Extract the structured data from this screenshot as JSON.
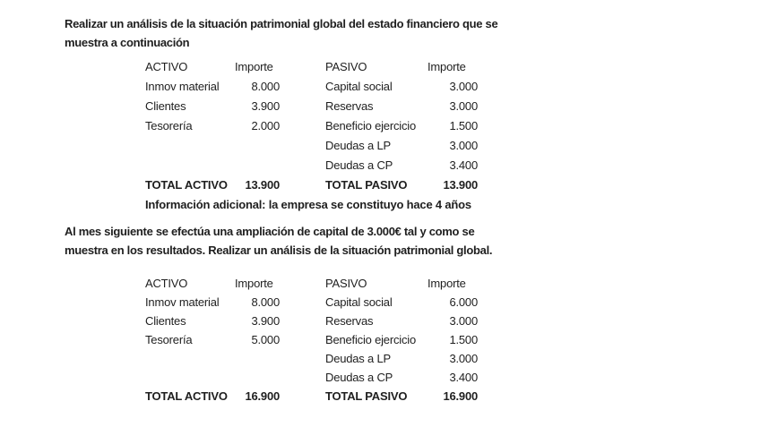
{
  "document": {
    "background": "#ffffff",
    "text_color": "#1f1f1f"
  },
  "exercise1": {
    "prompt_lines": [
      "Realizar un análisis de la situación patrimonial global del estado financiero que se",
      "muestra a continuación"
    ],
    "table": {
      "headers": [
        "ACTIVO",
        "Importe",
        "PASIVO",
        "Importe"
      ],
      "rows": [
        [
          "Inmov material",
          "8.000",
          "Capital social",
          "3.000"
        ],
        [
          "Clientes",
          "3.900",
          "Reservas",
          "3.000"
        ],
        [
          "Tesorería",
          "2.000",
          "Beneficio ejercicio",
          "1.500"
        ],
        [
          "",
          "",
          "Deudas a LP",
          "3.000"
        ],
        [
          "",
          "",
          "Deudas a CP",
          "3.400"
        ]
      ],
      "totals": [
        "TOTAL ACTIVO",
        "13.900",
        "TOTAL PASIVO",
        "13.900"
      ],
      "additional_info": "Información adicional: la empresa se constituyo hace 4 años"
    }
  },
  "exercise2": {
    "prompt_lines": [
      "Al mes siguiente se efectúa una ampliación de capital de 3.000€ tal y como se",
      "muestra en los resultados. Realizar un análisis de la situación patrimonial global."
    ],
    "table": {
      "headers": [
        "ACTIVO",
        "Importe",
        "PASIVO",
        "Importe"
      ],
      "rows": [
        [
          "Inmov material",
          "8.000",
          "Capital social",
          "6.000"
        ],
        [
          "Clientes",
          "3.900",
          "Reservas",
          "3.000"
        ],
        [
          "Tesorería",
          "5.000",
          "Beneficio ejercicio",
          "1.500"
        ],
        [
          "",
          "",
          "Deudas a LP",
          "3.000"
        ],
        [
          "",
          "",
          "Deudas a CP",
          "3.400"
        ]
      ],
      "totals": [
        "TOTAL ACTIVO",
        "16.900",
        "TOTAL PASIVO",
        "16.900"
      ]
    }
  }
}
